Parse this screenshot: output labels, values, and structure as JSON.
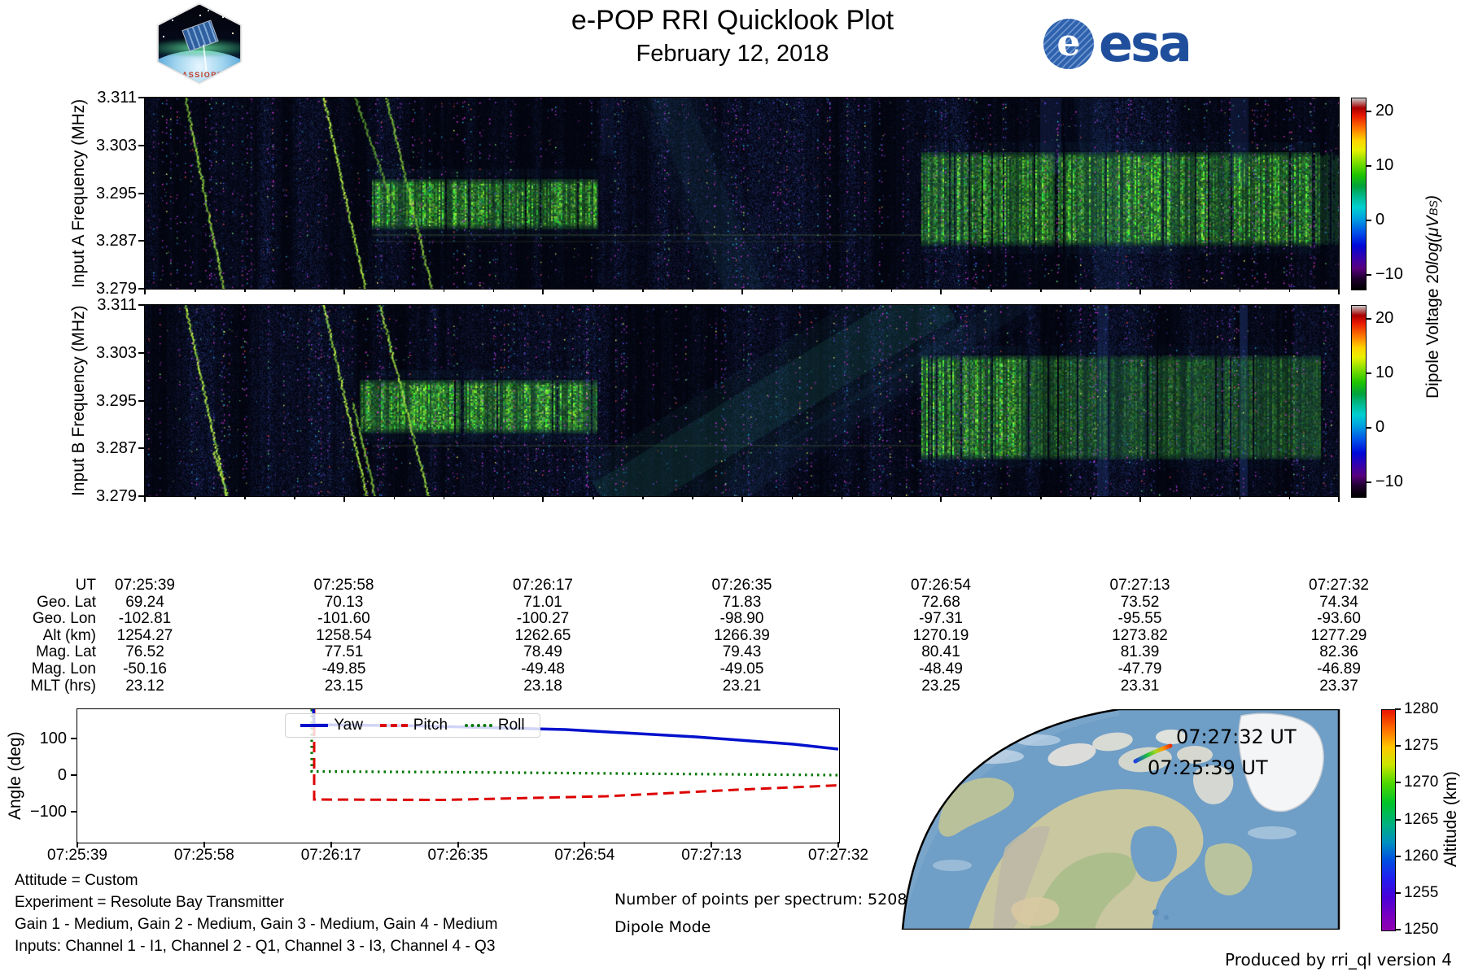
{
  "header": {
    "title": "e-POP RRI Quicklook Plot",
    "date": "February 12, 2018",
    "patch_label": "CASSIOPE",
    "esa_circle_letter": "e",
    "esa_wordmark": "esa"
  },
  "colors": {
    "yaw": "#0011cc",
    "pitch": "#dd0000",
    "roll": "#007700",
    "esa_blue": "#1f4e9c",
    "ocean": "#6f9ec6"
  },
  "xticks": [
    "07:25:39",
    "07:25:58",
    "07:26:17",
    "07:26:35",
    "07:26:54",
    "07:27:13",
    "07:27:32"
  ],
  "spectrograms": [
    {
      "ylabel": "Input A Frequency (MHz)",
      "yticks": [
        "3.311",
        "3.303",
        "3.295",
        "3.287",
        "3.279"
      ]
    },
    {
      "ylabel": "Input B Frequency (MHz)",
      "yticks": [
        "3.311",
        "3.303",
        "3.295",
        "3.287",
        "3.279"
      ]
    }
  ],
  "dipole_colorbar": {
    "ticks": [
      "20",
      "10",
      "0",
      "−10"
    ],
    "label_pre": "Dipole Voltage 20",
    "label_math": "log(μV",
    "label_sub": "BS",
    "label_end": ")"
  },
  "ephemeris": {
    "rows": [
      {
        "label": "UT",
        "values": [
          "07:25:39",
          "07:25:58",
          "07:26:17",
          "07:26:35",
          "07:26:54",
          "07:27:13",
          "07:27:32"
        ]
      },
      {
        "label": "Geo. Lat",
        "values": [
          "69.24",
          "70.13",
          "71.01",
          "71.83",
          "72.68",
          "73.52",
          "74.34"
        ]
      },
      {
        "label": "Geo. Lon",
        "values": [
          "-102.81",
          "-101.60",
          "-100.27",
          "-98.90",
          "-97.31",
          "-95.55",
          "-93.60"
        ]
      },
      {
        "label": "Alt (km)",
        "values": [
          "1254.27",
          "1258.54",
          "1262.65",
          "1266.39",
          "1270.19",
          "1273.82",
          "1277.29"
        ]
      },
      {
        "label": "Mag. Lat",
        "values": [
          "76.52",
          "77.51",
          "78.49",
          "79.43",
          "80.41",
          "81.39",
          "82.36"
        ]
      },
      {
        "label": "Mag. Lon",
        "values": [
          "-50.16",
          "-49.85",
          "-49.48",
          "-49.05",
          "-48.49",
          "-47.79",
          "-46.89"
        ]
      },
      {
        "label": "MLT (hrs)",
        "values": [
          "23.12",
          "23.15",
          "23.18",
          "23.21",
          "23.25",
          "23.31",
          "23.37"
        ]
      }
    ]
  },
  "attitude": {
    "ylabel": "Angle (deg)",
    "yticks": [
      "100",
      "0",
      "−100"
    ],
    "legend": [
      {
        "label": "Yaw",
        "style": "solid"
      },
      {
        "label": "Pitch",
        "style": "dashed"
      },
      {
        "label": "Roll",
        "style": "dotted"
      }
    ]
  },
  "map": {
    "label_end": "07:27:32 UT",
    "label_start": "07:25:39 UT"
  },
  "altitude_colorbar": {
    "label": "Altitude (km)",
    "ticks": [
      "1280",
      "1275",
      "1270",
      "1265",
      "1260",
      "1255",
      "1250"
    ]
  },
  "notes": {
    "attitude": "Attitude = Custom",
    "experiment": "Experiment = Resolute Bay Transmitter",
    "gains": "Gain 1 - Medium, Gain 2 - Medium, Gain 3 - Medium, Gain 4 - Medium",
    "inputs": "Inputs: Channel 1 - I1, Channel 2 - Q1, Channel 3 - I3, Channel 4 - Q3",
    "points": "Number of points per spectrum: 5208",
    "mode": "Dipole Mode",
    "produced": "Produced by rri_ql version 4"
  },
  "chart_data": [
    {
      "type": "heatmap",
      "title": "Input A spectrogram",
      "ylabel": "Input A Frequency (MHz)",
      "ylim": [
        3.279,
        3.311
      ],
      "y_ticks": [
        3.311,
        3.303,
        3.295,
        3.287,
        3.279
      ],
      "x_range": [
        "07:25:39",
        "07:27:32"
      ],
      "x_ticks": [
        "07:25:39",
        "07:25:58",
        "07:26:17",
        "07:26:35",
        "07:26:54",
        "07:27:13",
        "07:27:32"
      ],
      "colorbar": {
        "label": "Dipole Voltage 20log(μVBS)",
        "ticks": [
          20,
          10,
          0,
          -10
        ],
        "colormap": "nipy_spectral-like"
      },
      "features": [
        {
          "kind": "slanted-trace",
          "time": "07:25:43",
          "freq_span": [
            3.279,
            3.311
          ]
        },
        {
          "kind": "slanted-trace",
          "time": "07:25:57",
          "freq_span": [
            3.279,
            3.311
          ]
        },
        {
          "kind": "slanted-trace",
          "time": "07:26:03",
          "freq_span": [
            3.279,
            3.311
          ]
        },
        {
          "kind": "burst-block",
          "time_span": [
            "07:26:00",
            "07:26:22"
          ],
          "freq_span": [
            3.289,
            3.298
          ]
        },
        {
          "kind": "burst-block",
          "time_span": [
            "07:26:52",
            "07:27:30"
          ],
          "freq_span": [
            3.287,
            3.302
          ]
        },
        {
          "kind": "faint-diagonal-band",
          "time_span": [
            "07:26:26",
            "07:26:36"
          ],
          "freq_span": [
            3.279,
            3.311
          ]
        }
      ]
    },
    {
      "type": "heatmap",
      "title": "Input B spectrogram",
      "ylabel": "Input B Frequency (MHz)",
      "ylim": [
        3.279,
        3.311
      ],
      "y_ticks": [
        3.311,
        3.303,
        3.295,
        3.287,
        3.279
      ],
      "x_range": [
        "07:25:39",
        "07:27:32"
      ],
      "colorbar": {
        "label": "Dipole Voltage 20log(μVBS)",
        "ticks": [
          20,
          10,
          0,
          -10
        ],
        "colormap": "nipy_spectral-like"
      },
      "features": [
        {
          "kind": "slanted-trace",
          "time": "07:25:43",
          "freq_span": [
            3.279,
            3.311
          ]
        },
        {
          "kind": "slanted-trace",
          "time": "07:25:57",
          "freq_span": [
            3.279,
            3.311
          ]
        },
        {
          "kind": "burst-block",
          "time_span": [
            "07:25:59",
            "07:26:22"
          ],
          "freq_span": [
            3.29,
            3.299
          ]
        },
        {
          "kind": "burst-block",
          "time_span": [
            "07:26:52",
            "07:27:30"
          ],
          "freq_span": [
            3.286,
            3.303
          ]
        },
        {
          "kind": "broad-ascending-band",
          "time_span": [
            "07:26:22",
            "07:26:54"
          ],
          "freq_span": [
            3.279,
            3.311
          ]
        }
      ]
    },
    {
      "type": "line",
      "title": "Attitude angles",
      "ylabel": "Angle (deg)",
      "ylim": [
        -180,
        185
      ],
      "yticks": [
        100,
        0,
        -100
      ],
      "x_ticks": [
        "07:25:39",
        "07:25:58",
        "07:26:17",
        "07:26:35",
        "07:26:54",
        "07:27:13",
        "07:27:32"
      ],
      "legend_position": "upper center",
      "series": [
        {
          "name": "Yaw",
          "color": "#0011cc",
          "style": "solid",
          "points": [
            [
              "07:26:14",
              180
            ],
            [
              "07:26:15",
              135
            ],
            [
              "07:26:30",
              134
            ],
            [
              "07:26:50",
              128
            ],
            [
              "07:27:00",
              118
            ],
            [
              "07:27:13",
              98
            ],
            [
              "07:27:25",
              78
            ],
            [
              "07:27:32",
              68
            ]
          ]
        },
        {
          "name": "Pitch",
          "color": "#dd0000",
          "style": "dashed",
          "points": [
            [
              "07:26:14",
              180
            ],
            [
              "07:26:15",
              -67
            ],
            [
              "07:26:35",
              -67
            ],
            [
              "07:26:54",
              -58
            ],
            [
              "07:27:13",
              -43
            ],
            [
              "07:27:32",
              -28
            ]
          ]
        },
        {
          "name": "Roll",
          "color": "#007700",
          "style": "dotted",
          "points": [
            [
              "07:26:14",
              180
            ],
            [
              "07:26:15",
              10
            ],
            [
              "07:26:35",
              8
            ],
            [
              "07:26:54",
              5
            ],
            [
              "07:27:13",
              2
            ],
            [
              "07:27:32",
              0
            ]
          ]
        }
      ]
    },
    {
      "type": "table",
      "title": "Ephemeris",
      "row_labels": [
        "UT",
        "Geo. Lat",
        "Geo. Lon",
        "Alt (km)",
        "Mag. Lat",
        "Mag. Lon",
        "MLT (hrs)"
      ],
      "columns": [
        [
          "07:25:39",
          "69.24",
          "-102.81",
          "1254.27",
          "76.52",
          "-50.16",
          "23.12"
        ],
        [
          "07:25:58",
          "70.13",
          "-101.60",
          "1258.54",
          "77.51",
          "-49.85",
          "23.15"
        ],
        [
          "07:26:17",
          "71.01",
          "-100.27",
          "1262.65",
          "78.49",
          "-49.48",
          "23.18"
        ],
        [
          "07:26:35",
          "71.83",
          "-98.90",
          "1266.39",
          "79.43",
          "-49.05",
          "23.21"
        ],
        [
          "07:26:54",
          "72.68",
          "-97.31",
          "1270.19",
          "80.41",
          "-48.49",
          "23.25"
        ],
        [
          "07:27:13",
          "73.52",
          "-95.55",
          "1273.82",
          "81.39",
          "-47.79",
          "23.31"
        ],
        [
          "07:27:32",
          "74.34",
          "-93.60",
          "1277.29",
          "82.36",
          "-46.89",
          "23.37"
        ]
      ]
    },
    {
      "type": "map-track",
      "title": "Ground track over North America",
      "labels": [
        "07:27:32 UT",
        "07:25:39 UT"
      ],
      "track_altitude_km": [
        1254.27,
        1277.29
      ],
      "colorbar": {
        "label": "Altitude (km)",
        "ticks": [
          1280,
          1275,
          1270,
          1265,
          1260,
          1255,
          1250
        ],
        "colormap": "rainbow"
      }
    }
  ]
}
